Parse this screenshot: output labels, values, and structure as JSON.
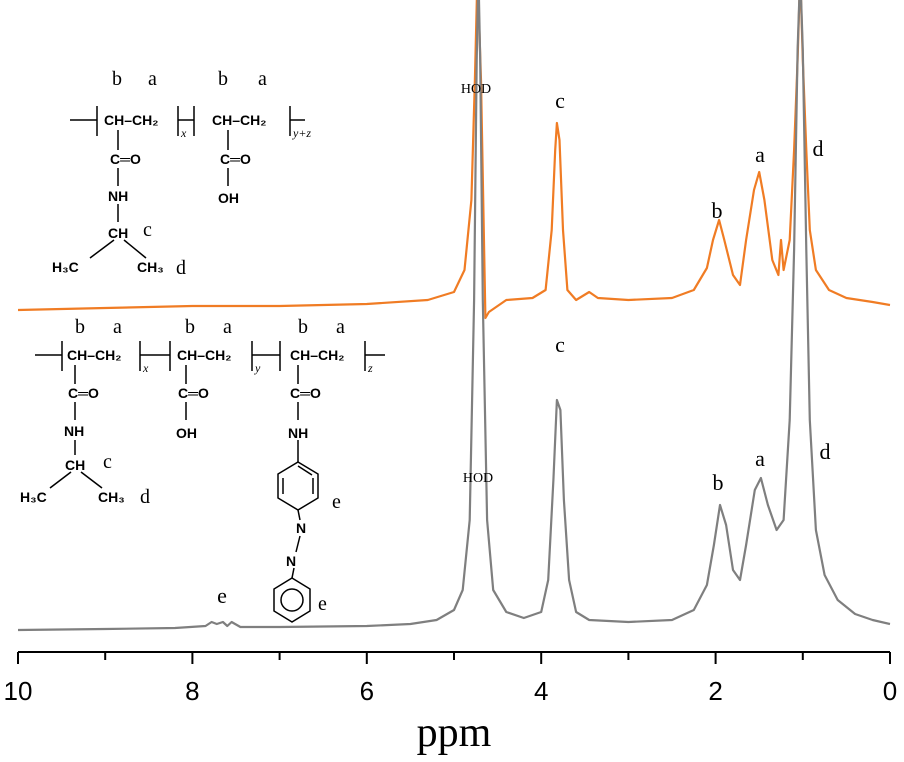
{
  "chart_data": {
    "type": "line",
    "xlabel": "ppm",
    "xlim": [
      10,
      0
    ],
    "xticks": [
      10,
      8,
      6,
      4,
      2,
      0
    ],
    "xminorticks": [
      9,
      7,
      5,
      3,
      1
    ],
    "ylim": [
      0,
      652
    ],
    "series": [
      {
        "color": "#f07c24",
        "x": [
          10,
          9,
          8,
          7,
          6,
          5.3,
          5.0,
          4.88,
          4.8,
          4.76,
          4.73,
          4.69,
          4.64,
          4.6,
          4.4,
          4.1,
          3.95,
          3.88,
          3.84,
          3.82,
          3.79,
          3.75,
          3.7,
          3.6,
          3.45,
          3.35,
          3.0,
          2.5,
          2.25,
          2.1,
          2.03,
          1.96,
          1.9,
          1.8,
          1.72,
          1.65,
          1.56,
          1.5,
          1.44,
          1.35,
          1.28,
          1.25,
          1.22,
          1.15,
          1.1,
          1.06,
          1.03,
          1.0,
          0.96,
          0.92,
          0.85,
          0.7,
          0.5,
          0.2,
          0
        ],
        "values": [
          342,
          344,
          346,
          346,
          348,
          352,
          360,
          382,
          452,
          572,
          680,
          572,
          334,
          340,
          352,
          354,
          362,
          422,
          502,
          529,
          512,
          422,
          362,
          352,
          360,
          354,
          352,
          354,
          362,
          384,
          412,
          432,
          412,
          377,
          367,
          412,
          462,
          480,
          452,
          392,
          377,
          412,
          382,
          412,
          502,
          592,
          680,
          592,
          502,
          422,
          382,
          362,
          354,
          350,
          347
        ]
      },
      {
        "color": "#7f7f7f",
        "x": [
          10,
          9,
          8.2,
          7.85,
          7.78,
          7.72,
          7.65,
          7.6,
          7.55,
          7.45,
          7,
          6,
          5.5,
          5.2,
          5.0,
          4.9,
          4.82,
          4.77,
          4.74,
          4.72,
          4.7,
          4.67,
          4.62,
          4.55,
          4.4,
          4.2,
          4.0,
          3.92,
          3.86,
          3.82,
          3.78,
          3.74,
          3.68,
          3.6,
          3.45,
          3.0,
          2.5,
          2.25,
          2.1,
          2.02,
          1.95,
          1.88,
          1.8,
          1.72,
          1.65,
          1.55,
          1.48,
          1.4,
          1.3,
          1.22,
          1.15,
          1.1,
          1.06,
          1.03,
          1.0,
          0.96,
          0.92,
          0.85,
          0.75,
          0.6,
          0.4,
          0.2,
          0
        ],
        "values": [
          22,
          23,
          24,
          26,
          30,
          28,
          30,
          26,
          30,
          25,
          25,
          26,
          28,
          32,
          42,
          62,
          132,
          352,
          592,
          680,
          592,
          352,
          132,
          62,
          40,
          34,
          40,
          72,
          172,
          252,
          242,
          152,
          72,
          40,
          32,
          30,
          32,
          42,
          67,
          107,
          147,
          127,
          82,
          72,
          107,
          162,
          174,
          147,
          122,
          132,
          232,
          402,
          602,
          680,
          602,
          402,
          232,
          122,
          77,
          52,
          38,
          32,
          28
        ]
      }
    ],
    "annotations": [
      "HOD",
      "c",
      "b",
      "a",
      "d",
      "c",
      "HOD",
      "b",
      "a",
      "d",
      "e"
    ],
    "structure_top": [
      "b",
      "a",
      "b",
      "a",
      "CH–CH₂",
      "x",
      "CH–CH₂",
      "y+z",
      "C═O",
      "NH",
      "CH",
      "c",
      "H₃C",
      "CH₃",
      "d",
      "C═O",
      "OH"
    ],
    "structure_bottom": [
      "b",
      "a",
      "b",
      "a",
      "b",
      "a",
      "CH–CH₂",
      "x",
      "CH–CH₂",
      "y",
      "CH–CH₂",
      "z",
      "C═O",
      "NH",
      "CH",
      "c",
      "H₃C",
      "CH₃",
      "d",
      "C═O",
      "OH",
      "C═O",
      "NH",
      "N",
      "N",
      "e",
      "e"
    ]
  }
}
